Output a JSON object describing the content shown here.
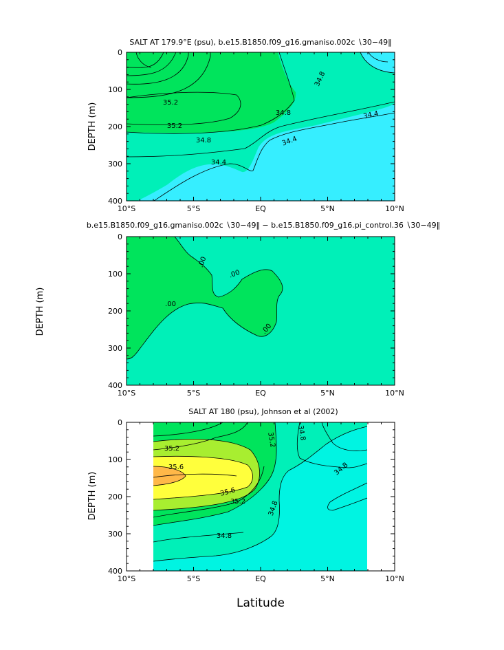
{
  "figure": {
    "xlabel": "Latitude"
  },
  "chart_data": [
    {
      "type": "heatmap",
      "title": "SALT AT 179.9°E (psu), b.e15.B1850.f09_g16.gmaniso.002c ∖30−49‖",
      "ylabel": "DEPTH (m)",
      "x_ticks": [
        "10°S",
        "5°S",
        "EQ",
        "5°N",
        "10°N"
      ],
      "x_tick_values": [
        -10,
        -5,
        0,
        5,
        10
      ],
      "y_ticks": [
        "0",
        "100",
        "200",
        "300",
        "400"
      ],
      "y_tick_values": [
        0,
        100,
        200,
        300,
        400
      ],
      "xlim": [
        -10,
        10
      ],
      "ylim": [
        400,
        0
      ],
      "contour_labels": [
        "35.2",
        "35.2",
        "34.8",
        "34.8",
        "34.8",
        "34.4",
        "34.4",
        "34.4"
      ],
      "colors": {
        "high": "#00e45c",
        "mid": "#00f0b8",
        "low": "#36eeff"
      }
    },
    {
      "type": "heatmap",
      "title": "b.e15.B1850.f09_g16.gmaniso.002c ∖30−49‖ − b.e15.B1850.f09_g16.pi_control.36 ∖30−49‖",
      "ylabel": "DEPTH (m)",
      "x_ticks": [
        "10°S",
        "5°S",
        "EQ",
        "5°N",
        "10°N"
      ],
      "x_tick_values": [
        -10,
        -5,
        0,
        5,
        10
      ],
      "y_ticks": [
        "0",
        "100",
        "200",
        "300",
        "400"
      ],
      "y_tick_values": [
        0,
        100,
        200,
        300,
        400
      ],
      "xlim": [
        -10,
        10
      ],
      "ylim": [
        400,
        0
      ],
      "contour_labels": [
        ".00",
        ".00",
        ".00",
        ".00"
      ],
      "colors": {
        "positive": "#00e45c",
        "background": "#00f0b8"
      }
    },
    {
      "type": "heatmap",
      "title": "SALT AT 180 (psu), Johnson et al (2002)",
      "ylabel": "DEPTH (m)",
      "x_ticks": [
        "10°S",
        "5°S",
        "EQ",
        "5°N",
        "10°N"
      ],
      "x_tick_values": [
        -10,
        -5,
        0,
        5,
        10
      ],
      "y_ticks": [
        "0",
        "100",
        "200",
        "300",
        "400"
      ],
      "y_tick_values": [
        0,
        100,
        200,
        300,
        400
      ],
      "xlim": [
        -10,
        10
      ],
      "ylim": [
        400,
        0
      ],
      "data_xrange": [
        -8,
        8
      ],
      "contour_labels": [
        "35.2",
        "35.2",
        "35.6",
        "35.6",
        "35.2",
        "34.8",
        "34.8",
        "34.8",
        "34.8"
      ],
      "colors": {
        "max": "#ffb848",
        "very_high": "#ffff3c",
        "high2": "#a8ee30",
        "high": "#00e45c",
        "mid": "#00f0b8",
        "low": "#00f4e2"
      }
    }
  ]
}
